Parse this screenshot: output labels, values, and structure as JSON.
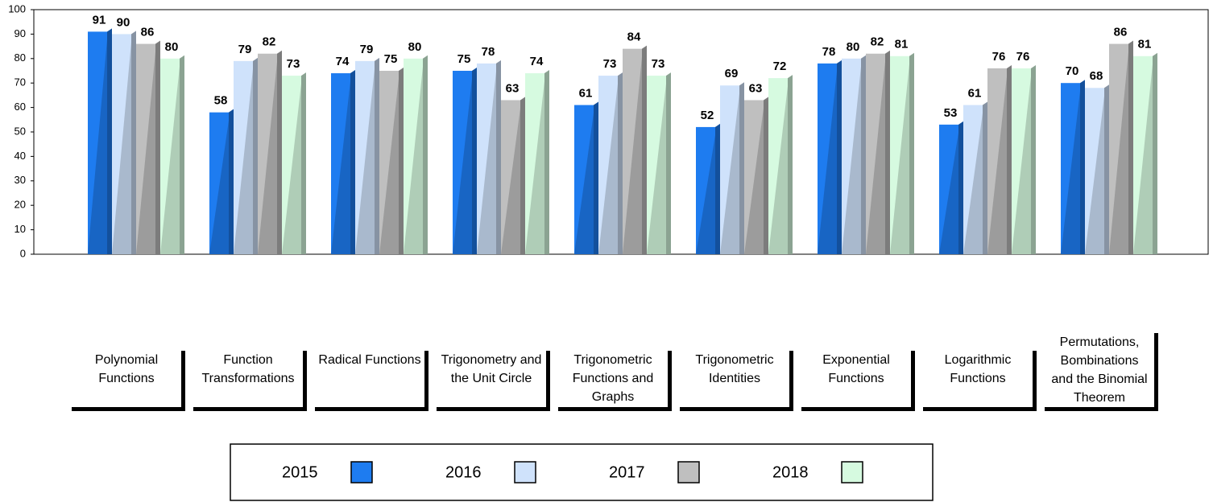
{
  "chart_data": {
    "type": "bar",
    "categories": [
      "Polynomial Functions",
      "Function Transformations",
      "Radical Functions",
      "Trigonometry and the Unit Circle",
      "Trigonometric Functions and Graphs",
      "Trigonometric Identities",
      "Exponential Functions",
      "Logarithmic Functions",
      "Permutations, Bombinations and the Binomial Theorem"
    ],
    "series": [
      {
        "name": "2015",
        "color": "#1e7cf0",
        "values": [
          91,
          58,
          74,
          75,
          61,
          52,
          78,
          53,
          70
        ]
      },
      {
        "name": "2016",
        "color": "#cfe2fb",
        "values": [
          90,
          79,
          79,
          78,
          73,
          69,
          80,
          61,
          68
        ]
      },
      {
        "name": "2017",
        "color": "#bfbfbf",
        "values": [
          86,
          82,
          75,
          63,
          84,
          63,
          82,
          76,
          86
        ]
      },
      {
        "name": "2018",
        "color": "#d6fae0",
        "values": [
          80,
          73,
          80,
          74,
          73,
          72,
          81,
          76,
          81
        ]
      }
    ],
    "ylim": [
      0,
      100
    ],
    "yticks": [
      0,
      10,
      20,
      30,
      40,
      50,
      60,
      70,
      80,
      90,
      100
    ],
    "legend": "bottom"
  }
}
